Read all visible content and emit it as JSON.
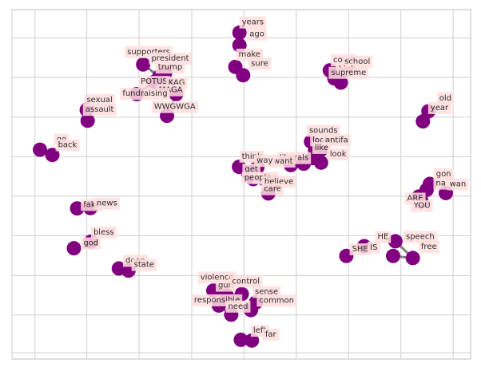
{
  "chart_data": {
    "type": "scatter",
    "description": "Word co-occurrence network: nodes (words) placed in a 2D layout, edges between co-occurring words.",
    "title": "",
    "xlabel": "",
    "ylabel": "",
    "xlim": [
      0,
      100
    ],
    "ylim": [
      0,
      100
    ],
    "grid": true,
    "ticks_visible": false,
    "node_color": "#800080",
    "edge_color": "#808080",
    "label_bg_color": "#ffdede",
    "nodes": [
      {
        "label": "years",
        "x": 49.6,
        "y": 93.4,
        "lx": 52.5,
        "ly": 96.3
      },
      {
        "label": "ago",
        "x": 49.6,
        "y": 89.8,
        "lx": 53.4,
        "ly": 92.9
      },
      {
        "label": "make",
        "x": 48.7,
        "y": 83.6,
        "lx": 51.8,
        "ly": 87.1
      },
      {
        "label": "sure",
        "x": 50.4,
        "y": 81.2,
        "lx": 54.0,
        "ly": 84.5
      },
      {
        "label": "supporters",
        "x": 28.6,
        "y": 84.3,
        "lx": 29.8,
        "ly": 87.8
      },
      {
        "label": "president",
        "x": 32.1,
        "y": 80.8,
        "lx": 34.5,
        "ly": 86.0
      },
      {
        "label": "trump",
        "x": 33.4,
        "y": 81.9,
        "lx": 34.5,
        "ly": 83.4
      },
      {
        "label": "POTUS",
        "x": 31.0,
        "y": 79.3,
        "lx": 31.0,
        "ly": 79.3
      },
      {
        "label": "KAG",
        "x": 33.9,
        "y": 78.4,
        "lx": 35.9,
        "ly": 79.0
      },
      {
        "label": "MAGA",
        "x": 35.8,
        "y": 75.8,
        "lx": 34.6,
        "ly": 76.9
      },
      {
        "label": "fundraising",
        "x": 27.2,
        "y": 75.8,
        "lx": 29.0,
        "ly": 75.9
      },
      {
        "label": "WWGWGA",
        "x": 33.8,
        "y": 69.6,
        "lx": 35.5,
        "ly": 72.1
      },
      {
        "label": "sexual",
        "x": 16.3,
        "y": 71.3,
        "lx": 19.1,
        "ly": 74.1
      },
      {
        "label": "assault",
        "x": 16.5,
        "y": 68.2,
        "lx": 19.1,
        "ly": 71.3
      },
      {
        "label": "go",
        "x": 6.1,
        "y": 59.9,
        "lx": 10.8,
        "ly": 62.8
      },
      {
        "label": "back",
        "x": 8.8,
        "y": 58.4,
        "lx": 12.1,
        "ly": 61.2
      },
      {
        "label": "court",
        "x": 69.3,
        "y": 82.6,
        "lx": 72.3,
        "ly": 85.5
      },
      {
        "label": "school",
        "x": 72.9,
        "y": 82.8,
        "lx": 75.3,
        "ly": 85.1
      },
      {
        "label": "high",
        "x": 70.3,
        "y": 80.3,
        "lx": 73.1,
        "ly": 82.9
      },
      {
        "label": "supreme",
        "x": 71.7,
        "y": 79.1,
        "lx": 73.4,
        "ly": 81.9
      },
      {
        "label": "old",
        "x": 90.8,
        "y": 70.9,
        "lx": 94.5,
        "ly": 74.6
      },
      {
        "label": "year",
        "x": 89.6,
        "y": 68.0,
        "lx": 93.2,
        "ly": 71.8
      },
      {
        "label": "sounds",
        "x": 65.2,
        "y": 62.2,
        "lx": 67.9,
        "ly": 65.3
      },
      {
        "label": "looks",
        "x": 66.1,
        "y": 59.7,
        "lx": 67.8,
        "ly": 62.6
      },
      {
        "label": "antifa",
        "x": 67.5,
        "y": 60.0,
        "lx": 70.8,
        "ly": 62.6
      },
      {
        "label": "like",
        "x": 65.6,
        "y": 57.5,
        "lx": 67.5,
        "ly": 60.4
      },
      {
        "label": "look",
        "x": 67.4,
        "y": 56.2,
        "lx": 71.1,
        "ly": 58.6
      },
      {
        "label": "liberals",
        "x": 63.6,
        "y": 55.9,
        "lx": 61.5,
        "ly": 57.5
      },
      {
        "label": "want",
        "x": 60.8,
        "y": 55.5,
        "lx": 59.1,
        "ly": 56.5
      },
      {
        "label": "think",
        "x": 49.5,
        "y": 55.0,
        "lx": 52.3,
        "ly": 57.9
      },
      {
        "label": "way",
        "x": 53.5,
        "y": 54.9,
        "lx": 55.1,
        "ly": 56.7
      },
      {
        "label": "get",
        "x": 51.5,
        "y": 53.3,
        "lx": 52.2,
        "ly": 54.2
      },
      {
        "label": "know",
        "x": 55.2,
        "y": 51.3,
        "lx": 55.3,
        "ly": 51.8
      },
      {
        "label": "people",
        "x": 52.6,
        "y": 51.5,
        "lx": 53.6,
        "ly": 51.8
      },
      {
        "label": "believe",
        "x": 56.6,
        "y": 50.0,
        "lx": 58.2,
        "ly": 50.7
      },
      {
        "label": "care",
        "x": 55.9,
        "y": 47.4,
        "lx": 56.8,
        "ly": 48.6
      },
      {
        "label": "gon",
        "x": 91.1,
        "y": 50.1,
        "lx": 94.1,
        "ly": 52.9
      },
      {
        "label": "na",
        "x": 90.4,
        "y": 48.4,
        "lx": 93.5,
        "ly": 50.2
      },
      {
        "label": "wan",
        "x": 94.6,
        "y": 47.5,
        "lx": 97.2,
        "ly": 50.0
      },
      {
        "label": "ARE",
        "x": 88.7,
        "y": 46.5,
        "lx": 87.9,
        "ly": 45.9
      },
      {
        "label": "YOU",
        "x": 89.3,
        "y": 45.1,
        "lx": 89.4,
        "ly": 43.8
      },
      {
        "label": "fake",
        "x": 14.2,
        "y": 43.1,
        "lx": 17.4,
        "ly": 44.1
      },
      {
        "label": "news",
        "x": 17.1,
        "y": 43.2,
        "lx": 20.7,
        "ly": 44.5
      },
      {
        "label": "bless",
        "x": 17.2,
        "y": 33.6,
        "lx": 20.0,
        "ly": 36.2
      },
      {
        "label": "god",
        "x": 13.5,
        "y": 31.7,
        "lx": 17.2,
        "ly": 33.1
      },
      {
        "label": "HE",
        "x": 83.6,
        "y": 33.7,
        "lx": 80.9,
        "ly": 34.9
      },
      {
        "label": "speech",
        "x": 87.4,
        "y": 28.9,
        "lx": 89.0,
        "ly": 34.9
      },
      {
        "label": "free",
        "x": 83.1,
        "y": 29.5,
        "lx": 90.9,
        "ly": 32.1
      },
      {
        "label": "IS",
        "x": 76.8,
        "y": 32.3,
        "lx": 78.9,
        "ly": 31.9
      },
      {
        "label": "SHE",
        "x": 72.9,
        "y": 29.5,
        "lx": 75.9,
        "ly": 31.4
      },
      {
        "label": "deep",
        "x": 23.3,
        "y": 25.9,
        "lx": 26.9,
        "ly": 28.1
      },
      {
        "label": "state",
        "x": 25.4,
        "y": 25.3,
        "lx": 28.8,
        "ly": 26.9
      },
      {
        "label": "violence",
        "x": 43.9,
        "y": 19.6,
        "lx": 44.7,
        "ly": 23.3
      },
      {
        "label": "gun",
        "x": 46.8,
        "y": 18.2,
        "lx": 46.6,
        "ly": 21.0
      },
      {
        "label": "control",
        "x": 50.1,
        "y": 18.6,
        "lx": 51.0,
        "ly": 22.2
      },
      {
        "label": "sense",
        "x": 53.2,
        "y": 16.2,
        "lx": 55.5,
        "ly": 19.2
      },
      {
        "label": "common",
        "x": 52.1,
        "y": 14.0,
        "lx": 57.7,
        "ly": 16.7
      },
      {
        "label": "responsible",
        "x": 45.1,
        "y": 15.3,
        "lx": 44.7,
        "ly": 16.8
      },
      {
        "label": "need",
        "x": 47.8,
        "y": 12.7,
        "lx": 49.3,
        "ly": 15.0
      },
      {
        "label": "left",
        "x": 49.9,
        "y": 5.5,
        "lx": 54.0,
        "ly": 8.1
      },
      {
        "label": "far",
        "x": 52.3,
        "y": 5.3,
        "lx": 56.4,
        "ly": 7.0
      }
    ],
    "edges": [
      [
        "supporters",
        "president"
      ],
      [
        "trump",
        "president"
      ],
      [
        "trump",
        "MAGA"
      ],
      [
        "POTUS",
        "fundraising"
      ],
      [
        "MAGA",
        "WWGWGA"
      ],
      [
        "KAG",
        "MAGA"
      ],
      [
        "like",
        "looks"
      ],
      [
        "like",
        "liberals"
      ],
      [
        "want",
        "liberals"
      ],
      [
        "believe",
        "know"
      ],
      [
        "know",
        "people"
      ],
      [
        "HE",
        "speech"
      ],
      [
        "free",
        "speech"
      ],
      [
        "gun",
        "control"
      ],
      [
        "gun",
        "violence"
      ],
      [
        "gun",
        "need"
      ],
      [
        "responsible",
        "need"
      ],
      [
        "sense",
        "common"
      ]
    ]
  }
}
